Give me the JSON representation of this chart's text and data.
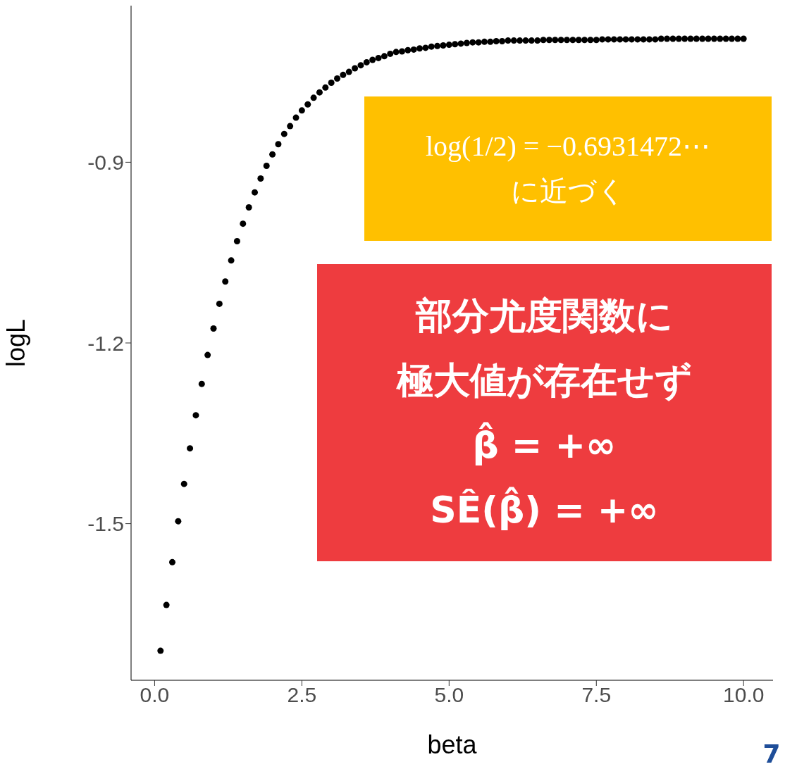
{
  "chart_data": {
    "type": "scatter",
    "xlabel": "beta",
    "ylabel": "logL",
    "x": [
      0.1,
      0.2,
      0.3,
      0.4,
      0.5,
      0.6,
      0.7,
      0.8,
      0.9,
      1.0,
      1.1,
      1.2,
      1.3,
      1.4,
      1.5,
      1.6,
      1.7,
      1.8,
      1.9,
      2.0,
      2.1,
      2.2,
      2.3,
      2.4,
      2.5,
      2.6,
      2.7,
      2.8,
      2.9,
      3.0,
      3.1,
      3.2,
      3.3,
      3.4,
      3.5,
      3.6,
      3.7,
      3.8,
      3.9,
      4.0,
      4.1,
      4.2,
      4.3,
      4.4,
      4.5,
      4.6,
      4.7,
      4.8,
      4.9,
      5.0,
      5.1,
      5.2,
      5.3,
      5.4,
      5.5,
      5.6,
      5.7,
      5.8,
      5.9,
      6.0,
      6.1,
      6.2,
      6.3,
      6.4,
      6.5,
      6.6,
      6.7,
      6.8,
      6.9,
      7.0,
      7.1,
      7.2,
      7.3,
      7.4,
      7.5,
      7.6,
      7.7,
      7.8,
      7.9,
      8.0,
      8.1,
      8.2,
      8.3,
      8.4,
      8.5,
      8.6,
      8.7,
      8.8,
      8.9,
      9.0,
      9.1,
      9.2,
      9.3,
      9.4,
      9.5,
      9.6,
      9.7,
      9.8,
      9.9,
      10.0
    ],
    "series": [
      {
        "color": "#000000",
        "values": [
          -1.711,
          -1.635,
          -1.564,
          -1.496,
          -1.434,
          -1.375,
          -1.32,
          -1.268,
          -1.22,
          -1.176,
          -1.135,
          -1.098,
          -1.063,
          -1.031,
          -1.002,
          -0.975,
          -0.95,
          -0.927,
          -0.906,
          -0.887,
          -0.87,
          -0.853,
          -0.84,
          -0.826,
          -0.814,
          -0.804,
          -0.793,
          -0.784,
          -0.776,
          -0.768,
          -0.761,
          -0.755,
          -0.75,
          -0.744,
          -0.739,
          -0.734,
          -0.73,
          -0.727,
          -0.724,
          -0.72,
          -0.717,
          -0.716,
          -0.714,
          -0.713,
          -0.711,
          -0.71,
          -0.708,
          -0.707,
          -0.706,
          -0.705,
          -0.704,
          -0.703,
          -0.702,
          -0.701,
          -0.701,
          -0.7,
          -0.7,
          -0.699,
          -0.699,
          -0.698,
          -0.698,
          -0.698,
          -0.698,
          -0.698,
          -0.698,
          -0.697,
          -0.697,
          -0.697,
          -0.697,
          -0.697,
          -0.697,
          -0.697,
          -0.697,
          -0.697,
          -0.697,
          -0.696,
          -0.696,
          -0.696,
          -0.696,
          -0.696,
          -0.696,
          -0.696,
          -0.696,
          -0.696,
          -0.696,
          -0.695,
          -0.695,
          -0.695,
          -0.695,
          -0.695,
          -0.695,
          -0.695,
          -0.695,
          -0.695,
          -0.695,
          -0.695,
          -0.695,
          -0.695,
          -0.695,
          -0.695
        ]
      }
    ],
    "xlim": [
      -0.4,
      10.5
    ],
    "ylim": [
      -1.76,
      -0.64
    ],
    "xticks": [
      {
        "value": 0,
        "label": "0.0"
      },
      {
        "value": 2.5,
        "label": "2.5"
      },
      {
        "value": 5,
        "label": "5.0"
      },
      {
        "value": 7.5,
        "label": "7.5"
      },
      {
        "value": 10,
        "label": "10.0"
      }
    ],
    "yticks": [
      -1.5,
      -1.2,
      -0.9
    ],
    "grid": false,
    "marker": "circle",
    "annotations": [
      "log(1/2) = −0.6931472⋯",
      "に近づく",
      "部分尤度関数に",
      "極大値が存在せず",
      "β̂ = +∞",
      "SÊ(β̂) = +∞",
      "7"
    ]
  }
}
